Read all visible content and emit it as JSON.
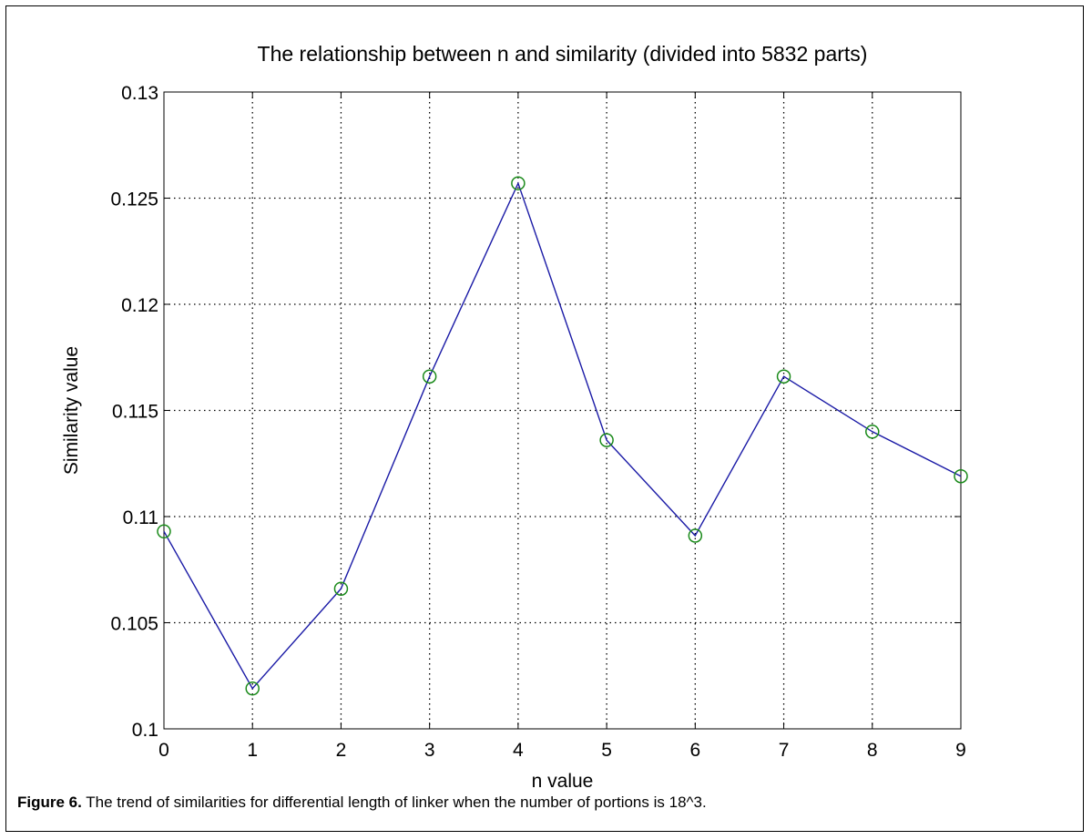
{
  "chart_data": {
    "type": "line",
    "title": "The relationship between n and similarity (divided into 5832 parts)",
    "xlabel": "n value",
    "ylabel": "Similarity value",
    "xlim": [
      0,
      9
    ],
    "ylim": [
      0.1,
      0.13
    ],
    "x_ticks": [
      "0",
      "1",
      "2",
      "3",
      "4",
      "5",
      "6",
      "7",
      "8",
      "9"
    ],
    "y_ticks": [
      "0.1",
      "0.105",
      "0.11",
      "0.115",
      "0.12",
      "0.125",
      "0.13"
    ],
    "grid": true,
    "series": [
      {
        "x": [
          0,
          1,
          2,
          3,
          4,
          5,
          6,
          7,
          8,
          9
        ],
        "values": [
          0.1093,
          0.1019,
          0.1066,
          0.1166,
          0.1257,
          0.1136,
          0.1091,
          0.1166,
          0.114,
          0.1119
        ],
        "line_color": "#1a1aa6",
        "marker_color": "#1a8a1a",
        "marker": "circle"
      }
    ]
  },
  "caption": {
    "label": "Figure 6.",
    "text": " The trend of similarities for differential length of linker when the number of portions is 18^3."
  }
}
